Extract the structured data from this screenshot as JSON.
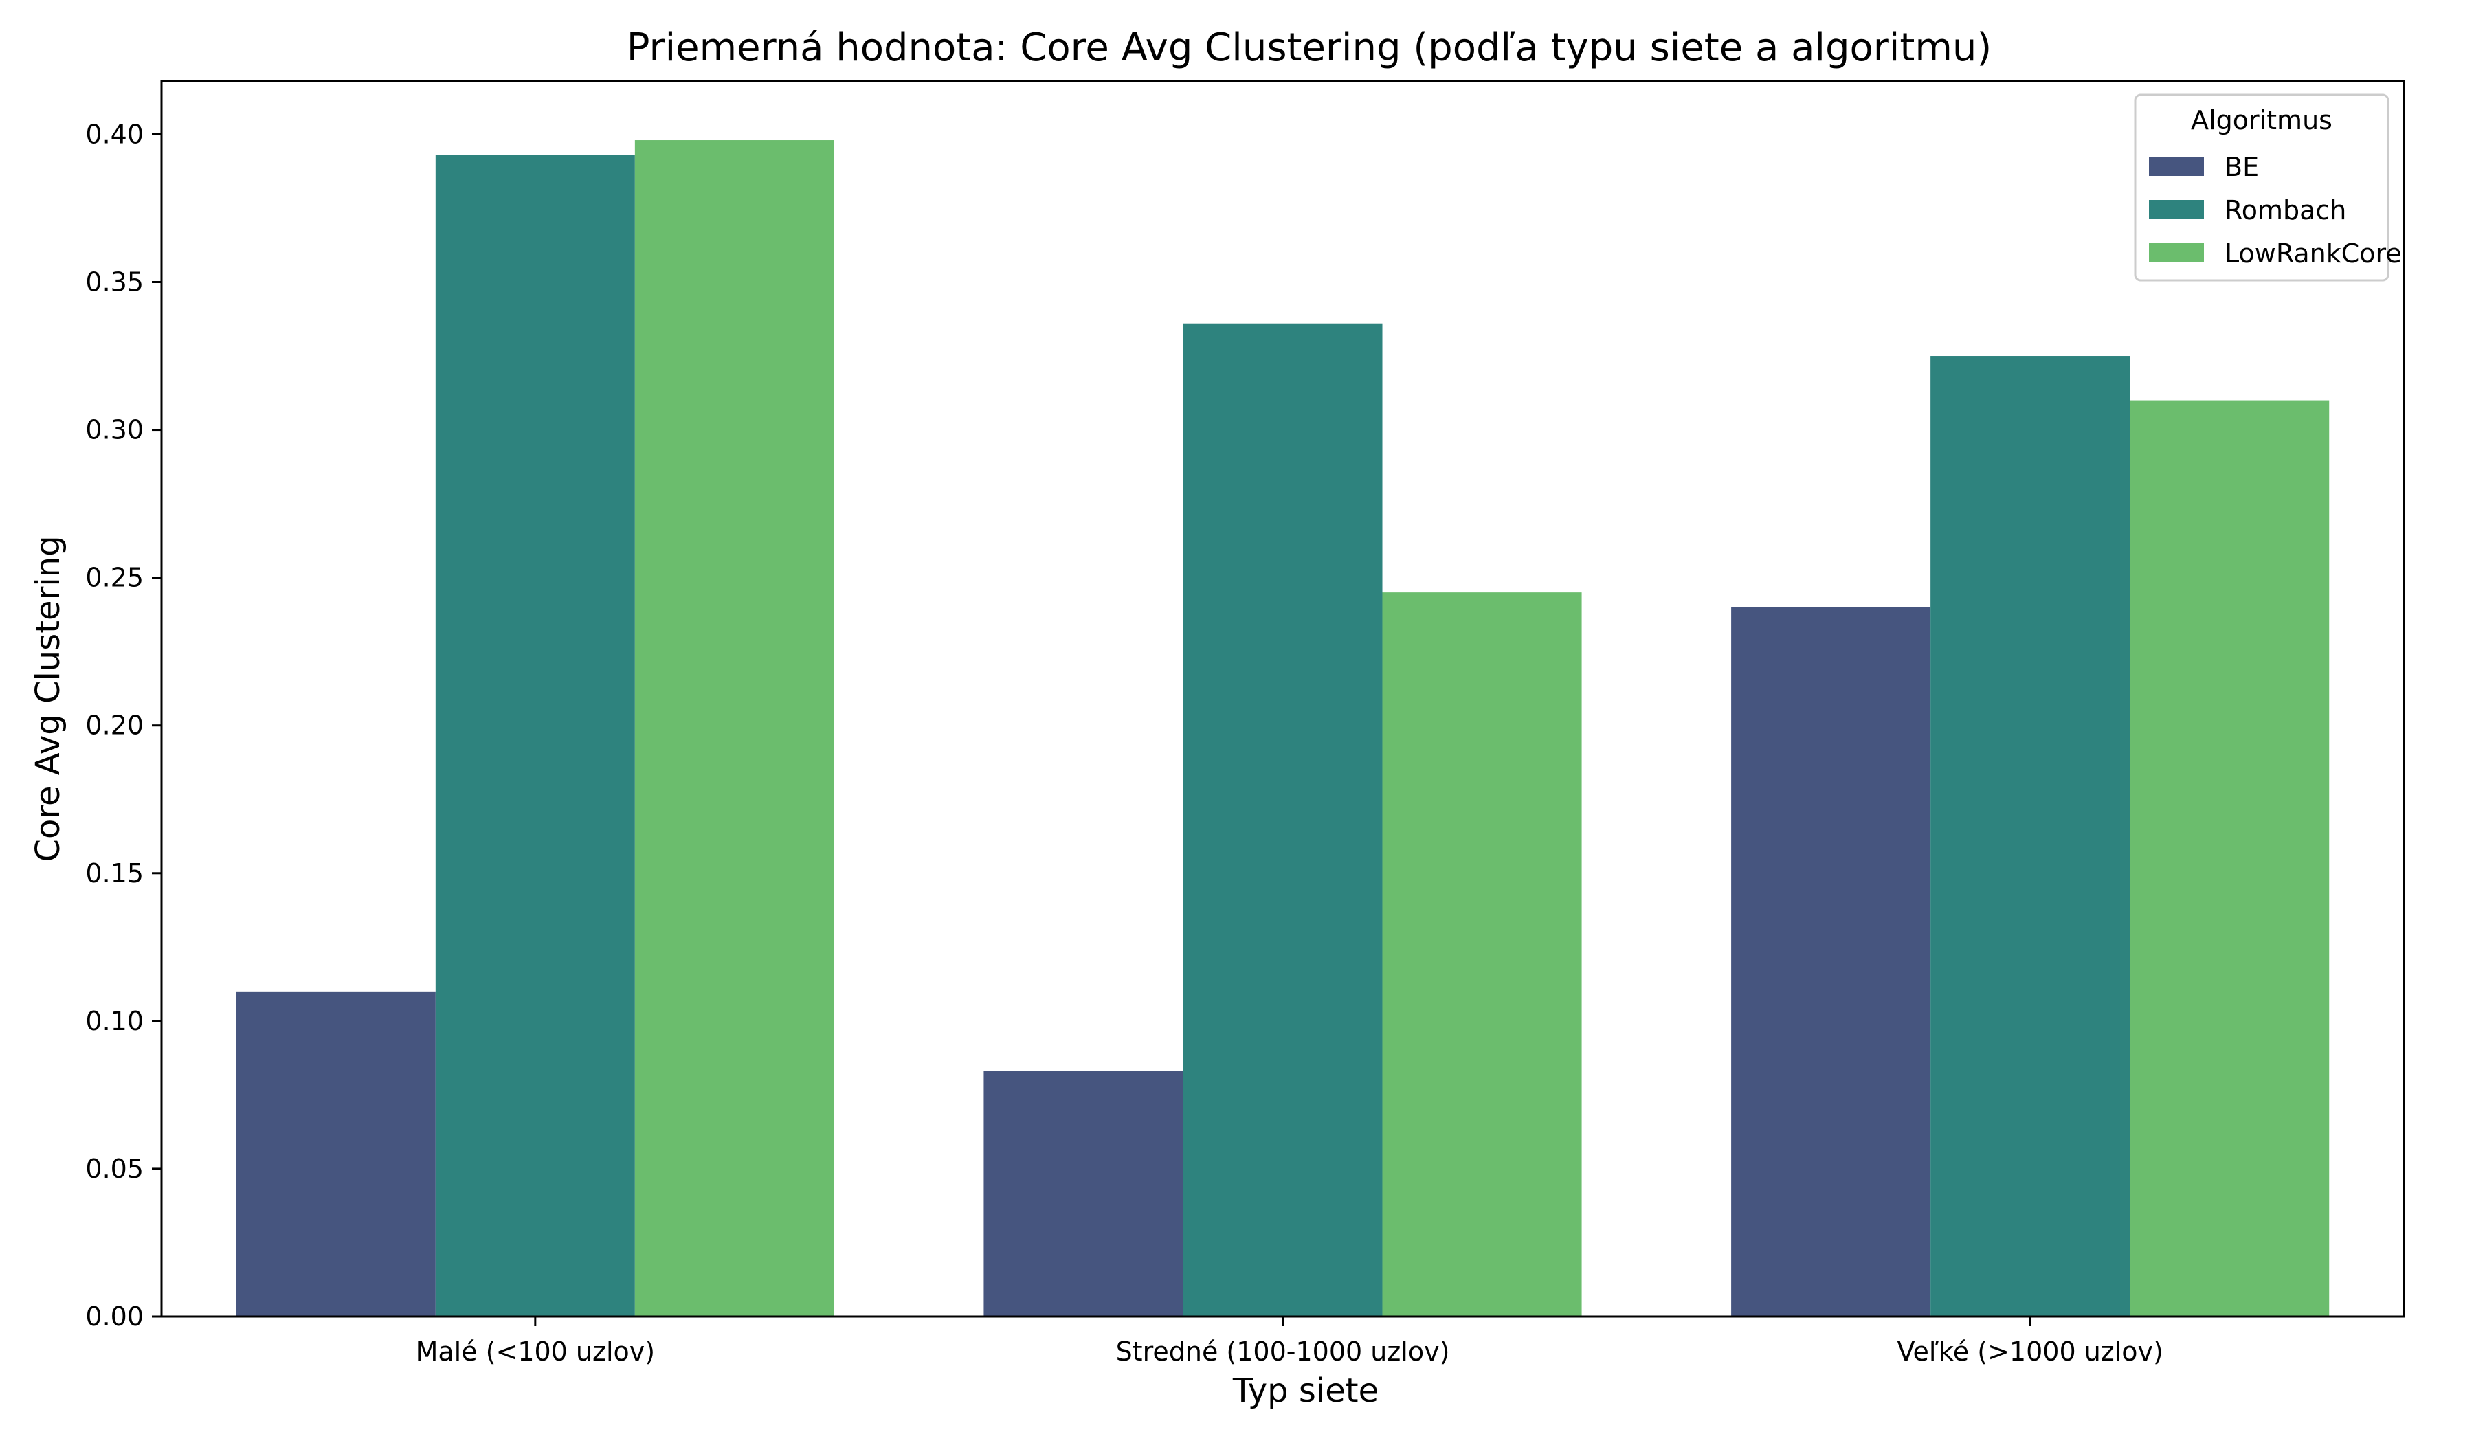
{
  "chart_data": {
    "type": "bar",
    "title": "Priemerná hodnota: Core Avg Clustering (podľa typu siete a algoritmu)",
    "xlabel": "Typ siete",
    "ylabel": "Core Avg Clustering",
    "categories": [
      "Malé (<100 uzlov)",
      "Stredné (100-1000 uzlov)",
      "Veľké (>1000 uzlov)"
    ],
    "series": [
      {
        "name": "BE",
        "color": "#46557f",
        "values": [
          0.11,
          0.083,
          0.24
        ]
      },
      {
        "name": "Rombach",
        "color": "#2e837e",
        "values": [
          0.393,
          0.336,
          0.325
        ]
      },
      {
        "name": "LowRankCore",
        "color": "#6bbd6d",
        "values": [
          0.398,
          0.245,
          0.31
        ]
      }
    ],
    "ylim": [
      0,
      0.418
    ],
    "yticks": [
      "0.00",
      "0.05",
      "0.10",
      "0.15",
      "0.20",
      "0.25",
      "0.30",
      "0.35",
      "0.40"
    ],
    "legend": {
      "title": "Algoritmus",
      "position": "top-right"
    },
    "grid": false
  }
}
